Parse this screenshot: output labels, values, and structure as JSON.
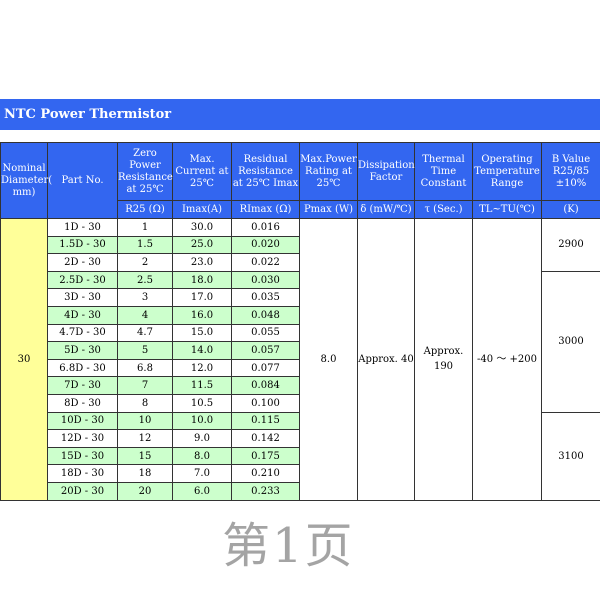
{
  "title": "NTC Power Thermistor",
  "headers": [
    "Nominal Diameter( mm)",
    "Part No.",
    "Zero Power Resistance at 25℃",
    "Max. Current at 25℃",
    "Residual Resistance at 25℃ Imax",
    "Max.Power Rating at 25℃",
    "Dissipation Factor",
    "Thermal Time Constant",
    "Operating Temperature Range",
    "B Value R25/85 ±10%"
  ],
  "units": [
    "R25 (Ω)",
    "Imax(A)",
    "RImax (Ω)",
    "Pmax (W)",
    "δ (mW/℃)",
    "τ (Sec.)",
    "TL~TU(℃)",
    "(K)"
  ],
  "diameter": "30",
  "pmax": "8.0",
  "dissipation": "Approx. 40",
  "time_constant": "Approx. 190",
  "temp_range": "-40 ～ +200",
  "b_values": [
    "2900",
    "3000",
    "3100"
  ],
  "rows": [
    [
      "1D - 30",
      "1",
      "30.0",
      "0.016"
    ],
    [
      "1.5D - 30",
      "1.5",
      "25.0",
      "0.020"
    ],
    [
      "2D - 30",
      "2",
      "23.0",
      "0.022"
    ],
    [
      "2.5D - 30",
      "2.5",
      "18.0",
      "0.030"
    ],
    [
      "3D - 30",
      "3",
      "17.0",
      "0.035"
    ],
    [
      "4D - 30",
      "4",
      "16.0",
      "0.048"
    ],
    [
      "4.7D - 30",
      "4.7",
      "15.0",
      "0.055"
    ],
    [
      "5D - 30",
      "5",
      "14.0",
      "0.057"
    ],
    [
      "6.8D - 30",
      "6.8",
      "12.0",
      "0.077"
    ],
    [
      "7D - 30",
      "7",
      "11.5",
      "0.084"
    ],
    [
      "8D - 30",
      "8",
      "10.5",
      "0.100"
    ],
    [
      "10D - 30",
      "10",
      "10.0",
      "0.115"
    ],
    [
      "12D - 30",
      "12",
      "9.0",
      "0.142"
    ],
    [
      "15D - 30",
      "15",
      "8.0",
      "0.175"
    ],
    [
      "18D - 30",
      "18",
      "7.0",
      "0.210"
    ],
    [
      "20D - 30",
      "20",
      "6.0",
      "0.233"
    ]
  ],
  "watermark": "第1页",
  "colors": {
    "header": "#3366f0",
    "diameter": "#ffff99",
    "alt_row": "#ccffcc"
  }
}
